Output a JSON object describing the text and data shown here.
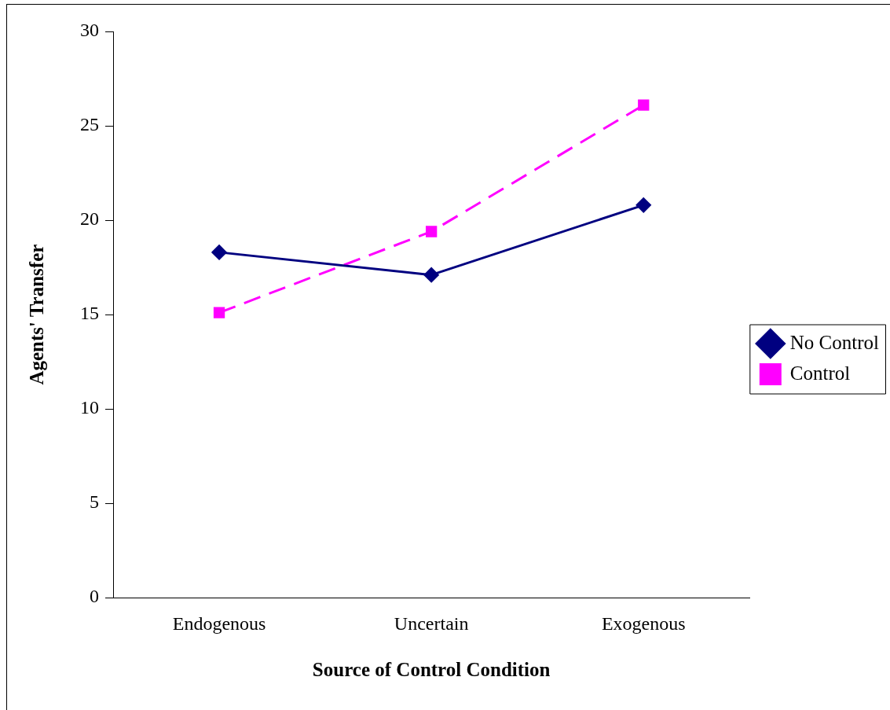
{
  "chart_data": {
    "type": "line",
    "xlabel": "Source of Control Condition",
    "ylabel": "Agents' Transfer",
    "categories": [
      "Endogenous",
      "Uncertain",
      "Exogenous"
    ],
    "series": [
      {
        "name": "No Control",
        "color": "#000080",
        "values": [
          18.3,
          17.1,
          20.8
        ],
        "marker": "diamond",
        "line_style": "solid"
      },
      {
        "name": "Control",
        "color": "#ff00ff",
        "values": [
          15.1,
          19.4,
          26.1
        ],
        "marker": "square",
        "line_style": "dashed"
      }
    ],
    "ylim": [
      0,
      30
    ],
    "yticks": [
      0,
      5,
      10,
      15,
      20,
      25,
      30
    ],
    "grid": false,
    "legend": "right"
  }
}
